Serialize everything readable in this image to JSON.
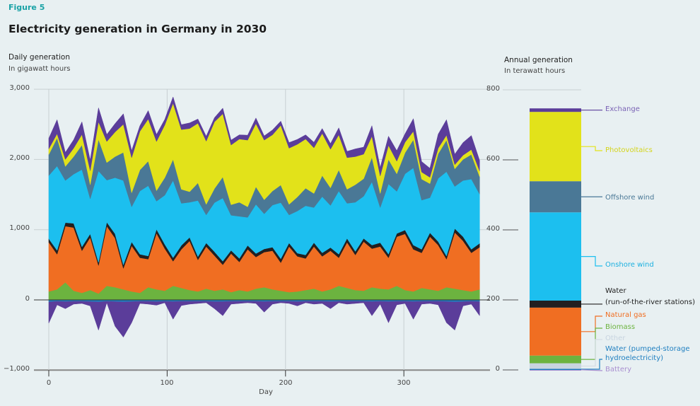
{
  "figure_label": "Figure 5",
  "title": "Electricity generation in Germany in 2030",
  "chart_data": [
    {
      "type": "area",
      "stacked": true,
      "title": "Daily generation",
      "subtitle": "In gigawatt hours",
      "xlabel": "Day",
      "ylabel": "",
      "xlim": [
        0,
        365
      ],
      "ylim": [
        -1000,
        3000
      ],
      "yticks": [
        "3,000",
        "2,000",
        "1,000",
        "0",
        "−1,000"
      ],
      "ytick_values": [
        3000,
        2000,
        1000,
        0,
        -1000
      ],
      "xticks": [
        "0",
        "100",
        "200",
        "300"
      ],
      "xtick_values": [
        0,
        100,
        200,
        300
      ],
      "grid": true,
      "x": [
        0,
        7,
        14,
        21,
        28,
        35,
        42,
        49,
        56,
        63,
        70,
        77,
        84,
        91,
        98,
        105,
        112,
        119,
        126,
        133,
        140,
        147,
        154,
        161,
        168,
        175,
        182,
        189,
        196,
        203,
        210,
        217,
        224,
        231,
        238,
        245,
        252,
        259,
        266,
        273,
        280,
        287,
        294,
        301,
        308,
        315,
        322,
        329,
        336,
        343,
        350,
        357,
        364
      ],
      "series_positive": [
        {
          "key": "biomass",
          "color": "#6cb33f",
          "values": [
            120,
            150,
            250,
            130,
            100,
            140,
            90,
            200,
            180,
            150,
            120,
            100,
            180,
            150,
            130,
            200,
            170,
            140,
            120,
            160,
            130,
            150,
            110,
            140,
            120,
            160,
            180,
            150,
            130,
            110,
            120,
            140,
            160,
            120,
            150,
            200,
            170,
            140,
            130,
            180,
            160,
            150,
            200,
            140,
            120,
            170,
            150,
            130,
            180,
            160,
            140,
            120,
            150
          ]
        },
        {
          "key": "natural_gas",
          "color": "#f06e22",
          "values": [
            700,
            500,
            800,
            900,
            600,
            750,
            400,
            850,
            700,
            300,
            650,
            500,
            400,
            800,
            600,
            350,
            550,
            700,
            450,
            600,
            500,
            350,
            550,
            400,
            600,
            450,
            500,
            550,
            400,
            650,
            500,
            450,
            600,
            500,
            550,
            400,
            650,
            500,
            700,
            550,
            600,
            450,
            700,
            800,
            600,
            500,
            750,
            650,
            400,
            800,
            700,
            550,
            600
          ]
        },
        {
          "key": "water_ror",
          "color": "#231f20",
          "values": [
            50,
            55,
            50,
            60,
            55,
            50,
            45,
            55,
            60,
            50,
            55,
            50,
            45,
            55,
            60,
            50,
            55,
            50,
            45,
            50,
            55,
            50,
            45,
            50,
            55,
            50,
            45,
            50,
            55,
            50,
            45,
            50,
            55,
            50,
            45,
            50,
            55,
            50,
            45,
            50,
            55,
            50,
            45,
            55,
            60,
            50,
            55,
            50,
            45,
            55,
            60,
            50,
            55
          ]
        },
        {
          "key": "onshore_wind",
          "color": "#1cbfef",
          "values": [
            900,
            1200,
            600,
            700,
            1100,
            500,
            1300,
            600,
            800,
            1200,
            500,
            900,
            1000,
            400,
            700,
            1100,
            600,
            500,
            800,
            400,
            700,
            900,
            500,
            600,
            400,
            700,
            500,
            600,
            800,
            400,
            600,
            700,
            500,
            800,
            600,
            900,
            500,
            700,
            600,
            900,
            500,
            1000,
            600,
            800,
            1100,
            700,
            500,
            900,
            1200,
            600,
            800,
            1000,
            700
          ]
        },
        {
          "key": "offshore_wind",
          "color": "#4a7896",
          "values": [
            300,
            400,
            200,
            250,
            350,
            200,
            450,
            250,
            300,
            400,
            200,
            300,
            350,
            150,
            250,
            300,
            200,
            150,
            250,
            150,
            200,
            300,
            150,
            200,
            150,
            250,
            200,
            200,
            250,
            150,
            200,
            250,
            200,
            300,
            250,
            300,
            200,
            250,
            250,
            350,
            200,
            350,
            250,
            300,
            400,
            300,
            200,
            350,
            450,
            250,
            300,
            350,
            250
          ]
        },
        {
          "key": "photovoltaics",
          "color": "#e2e21a",
          "values": [
            80,
            60,
            100,
            120,
            150,
            200,
            250,
            300,
            350,
            400,
            500,
            550,
            600,
            700,
            750,
            800,
            850,
            900,
            850,
            900,
            950,
            900,
            850,
            900,
            950,
            900,
            850,
            800,
            850,
            800,
            750,
            700,
            650,
            600,
            550,
            500,
            450,
            400,
            350,
            300,
            250,
            200,
            180,
            150,
            120,
            100,
            90,
            80,
            70,
            60,
            60,
            70,
            80
          ]
        },
        {
          "key": "exchange",
          "color": "#5b3d9a",
          "values": [
            150,
            200,
            100,
            120,
            180,
            150,
            200,
            100,
            120,
            150,
            100,
            80,
            120,
            100,
            80,
            90,
            70,
            80,
            60,
            70,
            60,
            80,
            70,
            60,
            70,
            80,
            60,
            70,
            60,
            80,
            70,
            60,
            80,
            70,
            80,
            100,
            90,
            110,
            100,
            150,
            120,
            130,
            150,
            120,
            180,
            150,
            130,
            200,
            220,
            150,
            180,
            200,
            150
          ]
        }
      ],
      "series_negative": [
        {
          "key": "water_pumped_storage",
          "color": "#1f7fc0",
          "values": [
            -30,
            -20,
            -25,
            -20,
            -20,
            -25,
            -30,
            -20,
            -25,
            -30,
            -25,
            -20,
            -20,
            -25,
            -20,
            -25,
            -20,
            -20,
            -20,
            -20,
            -25,
            -25,
            -20,
            -20,
            -20,
            -20,
            -25,
            -20,
            -20,
            -20,
            -25,
            -20,
            -20,
            -20,
            -25,
            -20,
            -20,
            -20,
            -20,
            -25,
            -20,
            -25,
            -20,
            -20,
            -25,
            -20,
            -20,
            -20,
            -25,
            -30,
            -25,
            -20,
            -25
          ]
        },
        {
          "key": "exchange",
          "color": "#5b3d9a",
          "values": [
            -300,
            -50,
            -100,
            -40,
            -30,
            -60,
            -400,
            -20,
            -350,
            -500,
            -300,
            -30,
            -40,
            -50,
            -20,
            -250,
            -60,
            -40,
            -30,
            -20,
            -100,
            -200,
            -40,
            -30,
            -20,
            -30,
            -150,
            -40,
            -20,
            -30,
            -60,
            -20,
            -40,
            -30,
            -100,
            -20,
            -40,
            -30,
            -20,
            -200,
            -40,
            -300,
            -50,
            -30,
            -250,
            -40,
            -30,
            -50,
            -300,
            -400,
            -60,
            -40,
            -200
          ]
        }
      ]
    },
    {
      "type": "bar",
      "stacked": true,
      "title": "Annual generation",
      "subtitle": "In terawatt hours",
      "ylim": [
        0,
        800
      ],
      "yticks": [
        "800",
        "600",
        "400",
        "200",
        "0"
      ],
      "ytick_values": [
        800,
        600,
        400,
        200,
        0
      ],
      "segments": [
        {
          "label": "Battery",
          "value": 1,
          "color": "#a98fd0"
        },
        {
          "label": "Water (pumped-storage hydroelectricity)",
          "line1": "Water (pumped-storage",
          "line2": "hydroelectricity)",
          "value": 2,
          "color": "#1f7fc0"
        },
        {
          "label": "Other",
          "value": 16,
          "color": "#c8d4e0"
        },
        {
          "label": "Biomass",
          "value": 22,
          "color": "#6cb33f"
        },
        {
          "label": "Natural gas",
          "value": 137,
          "color": "#f06e22"
        },
        {
          "label": "Water (run-of-the-river stations)",
          "line1": "Water",
          "line2": "(run-of-the-river stations)",
          "value": 20,
          "color": "#231f20"
        },
        {
          "label": "Onshore wind",
          "value": 252,
          "color": "#1cbfef"
        },
        {
          "label": "Offshore wind",
          "value": 89,
          "color": "#4a7896"
        },
        {
          "label": "Photovoltaics",
          "value": 198,
          "color": "#e2e21a"
        },
        {
          "label": "Exchange",
          "value": 10,
          "color": "#5b3d9a"
        }
      ]
    }
  ]
}
